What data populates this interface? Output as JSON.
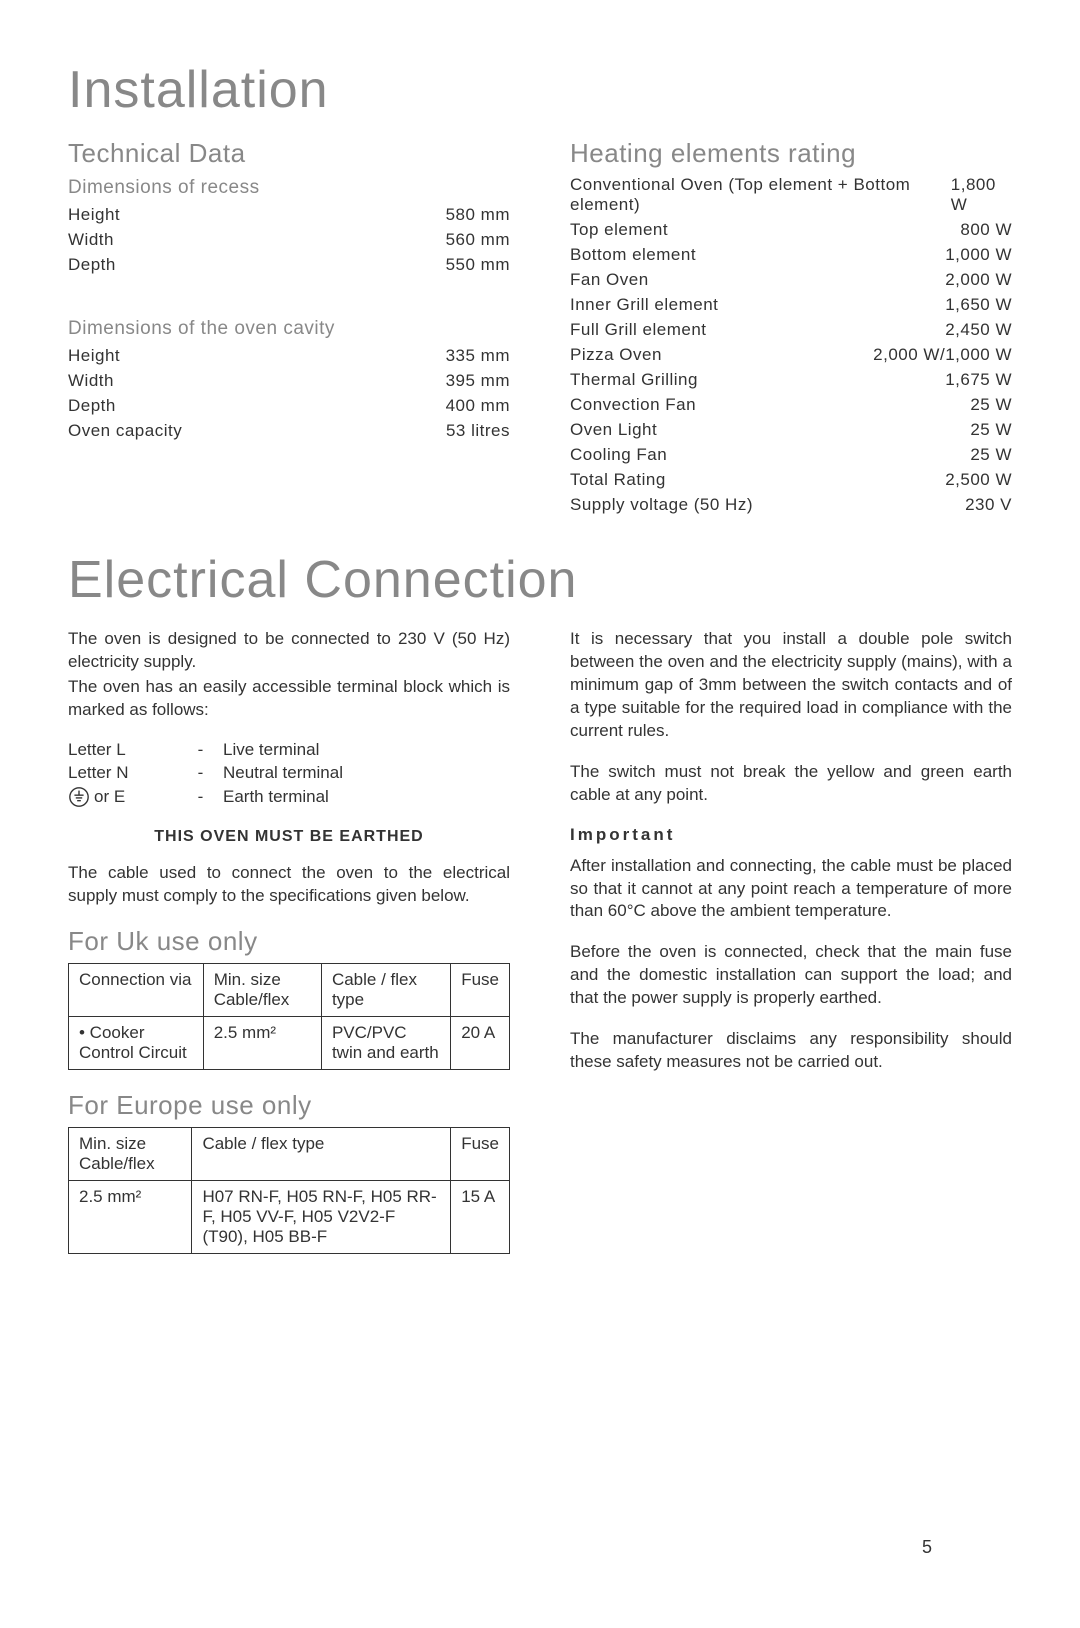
{
  "headings": {
    "installation": "Installation",
    "technical_data": "Technical Data",
    "dim_recess": "Dimensions of recess",
    "dim_cavity": "Dimensions of the oven cavity",
    "heating": "Heating elements rating",
    "electrical": "Electrical Connection",
    "uk": "For Uk use only",
    "europe": "For Europe use only",
    "important": "Important"
  },
  "recess": [
    {
      "label": "Height",
      "value": "580 mm"
    },
    {
      "label": "Width",
      "value": "560 mm"
    },
    {
      "label": "Depth",
      "value": "550 mm"
    }
  ],
  "cavity": [
    {
      "label": "Height",
      "value": "335 mm"
    },
    {
      "label": "Width",
      "value": "395 mm"
    },
    {
      "label": "Depth",
      "value": "400 mm"
    },
    {
      "label": "Oven capacity",
      "value": "53 litres"
    }
  ],
  "heating": [
    {
      "label": "Conventional Oven (Top element + Bottom element)",
      "value": "1,800 W"
    },
    {
      "label": "Top element",
      "value": "800 W"
    },
    {
      "label": "Bottom element",
      "value": "1,000 W"
    },
    {
      "label": "Fan Oven",
      "value": "2,000 W"
    },
    {
      "label": "Inner Grill element",
      "value": "1,650 W"
    },
    {
      "label": "Full Grill element",
      "value": "2,450 W"
    },
    {
      "label": "Pizza Oven",
      "value": "2,000 W/1,000 W"
    },
    {
      "label": "Thermal Grilling",
      "value": "1,675 W"
    },
    {
      "label": "Convection Fan",
      "value": "25 W"
    },
    {
      "label": "Oven Light",
      "value": "25 W"
    },
    {
      "label": "Cooling Fan",
      "value": "25 W"
    },
    {
      "label": "Total Rating",
      "value": "2,500 W"
    },
    {
      "label": "Supply voltage (50 Hz)",
      "value": "230 V"
    }
  ],
  "electrical": {
    "p1": "The oven is designed to be connected to 230 V (50 Hz) electricity supply.",
    "p2": "The oven has an easily accessible terminal block which is marked as follows:",
    "terminals": [
      {
        "sym": "Letter L",
        "dash": "-",
        "desc": "Live terminal"
      },
      {
        "sym": "Letter N",
        "dash": "-",
        "desc": "Neutral terminal"
      },
      {
        "sym": " or E",
        "dash": "-",
        "desc": "Earth terminal",
        "icon": true
      }
    ],
    "earthed": "THIS OVEN MUST BE EARTHED",
    "p3": "The cable used to connect the oven to the electrical supply must comply to the specifications given below.",
    "p4": "It is necessary that you install a double pole switch between the oven and the electricity supply (mains), with a minimum gap of 3mm between the switch contacts and of a type suitable for the required load in compliance with the current rules.",
    "p5": "The switch must not break the yellow and green earth cable at any point.",
    "p6": "After installation and connecting, the cable must be placed so that it cannot at any point reach a temperature of more than 60°C above the ambient temperature.",
    "p7": "Before the oven is connected, check that the main fuse and the domestic installation can support the load; and that the power supply is properly earthed.",
    "p8": "The manufacturer disclaims any responsibility should these safety measures not be carried out."
  },
  "uk_table": {
    "headers": [
      "Connection via",
      "Min. size Cable/flex",
      "Cable / flex type",
      "Fuse"
    ],
    "row": [
      "• Cooker Control Circuit",
      "2.5 mm²",
      "PVC/PVC twin and earth",
      "20 A"
    ]
  },
  "eu_table": {
    "headers": [
      "Min. size Cable/flex",
      "Cable / flex type",
      "Fuse"
    ],
    "row": [
      "2.5 mm²",
      "H07 RN-F, H05 RN-F, H05 RR-F, H05 VV-F, H05 V2V2-F (T90), H05 BB-F",
      "15 A"
    ]
  },
  "page_num": "5"
}
